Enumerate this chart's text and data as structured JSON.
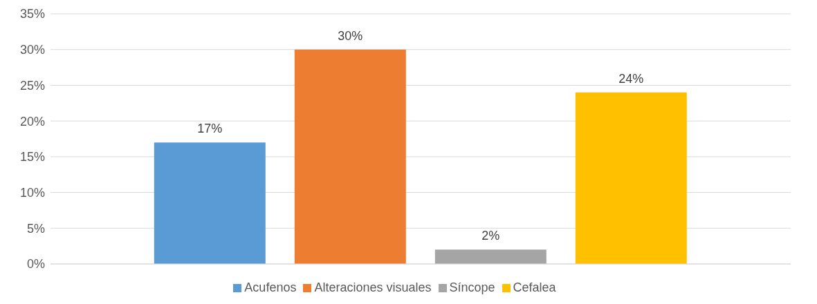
{
  "chart_data": {
    "type": "bar",
    "categories": [
      null
    ],
    "series": [
      {
        "name": "Acufenos",
        "color": "#5b9bd5",
        "values": [
          17
        ],
        "value_labels": [
          "17%"
        ]
      },
      {
        "name": "Alteraciones visuales",
        "color": "#ed7d31",
        "values": [
          30
        ],
        "value_labels": [
          "30%"
        ]
      },
      {
        "name": "Síncope",
        "color": "#a5a5a5",
        "values": [
          2
        ],
        "value_labels": [
          "2%"
        ]
      },
      {
        "name": "Cefalea",
        "color": "#ffc000",
        "values": [
          24
        ],
        "value_labels": [
          "24%"
        ]
      }
    ],
    "ylim": [
      0,
      35
    ],
    "yticks": [
      {
        "value": 0,
        "label": "0%"
      },
      {
        "value": 5,
        "label": "5%"
      },
      {
        "value": 10,
        "label": "10%"
      },
      {
        "value": 15,
        "label": "15%"
      },
      {
        "value": 20,
        "label": "20%"
      },
      {
        "value": 25,
        "label": "25%"
      },
      {
        "value": 30,
        "label": "30%"
      },
      {
        "value": 35,
        "label": "35%"
      }
    ],
    "grid": "y",
    "legend": "bottom"
  }
}
